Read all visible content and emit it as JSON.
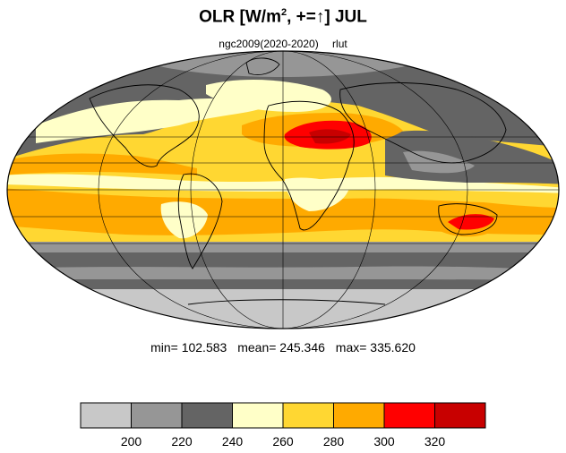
{
  "title": {
    "main": "OLR [W/m",
    "sup": "2",
    "rest": ", +=↑] JUL"
  },
  "subtitle": {
    "case": "ngc2009(2020-2020)",
    "variable": "rlut"
  },
  "stats": {
    "min": "min= 102.583",
    "mean": "mean= 245.346",
    "max": "max= 335.620"
  },
  "colorbar": {
    "colors": [
      "#c8c8c8",
      "#969696",
      "#646464",
      "#ffffc8",
      "#ffd732",
      "#ffaa00",
      "#ff0000",
      "#c80000"
    ],
    "tick_labels": [
      "200",
      "220",
      "240",
      "260",
      "280",
      "300",
      "320"
    ]
  },
  "map": {
    "projection": "mollweide",
    "ocean_default_color": "#ffd732"
  }
}
